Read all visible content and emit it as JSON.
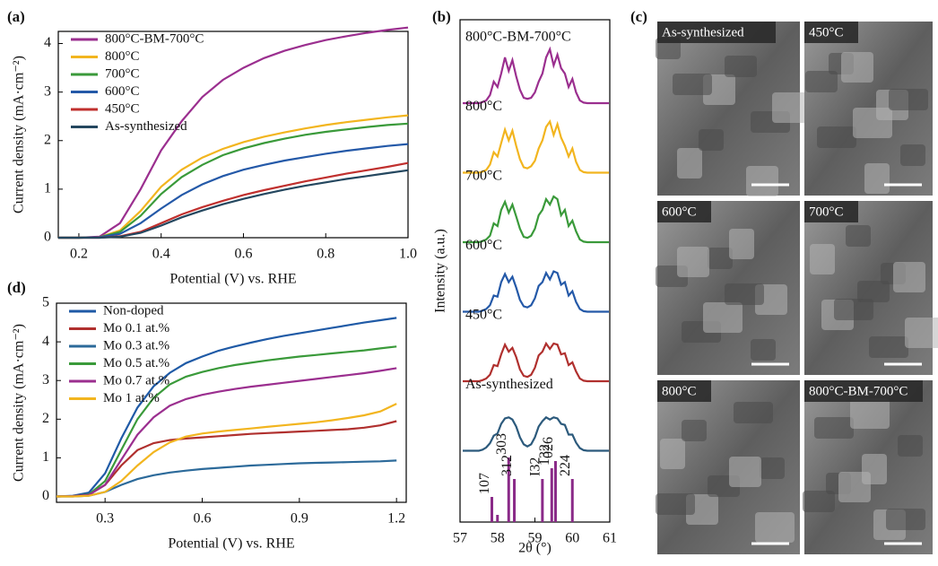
{
  "chart_data": [
    {
      "type": "line",
      "label": "(a)",
      "xlabel": "Potential (V) vs. RHE",
      "ylabel": "Current density (mA·cm⁻²)",
      "xlim": [
        0.15,
        1.0
      ],
      "ylim": [
        0,
        4.25
      ],
      "xticks": [
        0.2,
        0.4,
        0.6,
        0.8,
        {
          "value": 1,
          "label": "1.0"
        }
      ],
      "yticks": [
        0,
        1,
        2,
        3,
        4
      ],
      "legend": "upper left",
      "x": [
        0.15,
        0.2,
        0.25,
        0.3,
        0.35,
        0.4,
        0.45,
        0.5,
        0.55,
        0.6,
        0.65,
        0.7,
        0.75,
        0.8,
        0.85,
        0.9,
        0.95,
        1.0
      ],
      "series": [
        {
          "name": "800°C-BM-700°C",
          "color": "#9b2f8f",
          "values": [
            0,
            0,
            0.02,
            0.3,
            1.0,
            1.8,
            2.4,
            2.9,
            3.25,
            3.5,
            3.7,
            3.85,
            3.97,
            4.07,
            4.15,
            4.22,
            4.28,
            4.33
          ]
        },
        {
          "name": "800°C",
          "color": "#f2b51f",
          "values": [
            0,
            0,
            0.01,
            0.15,
            0.55,
            1.05,
            1.4,
            1.65,
            1.83,
            1.97,
            2.08,
            2.17,
            2.25,
            2.32,
            2.38,
            2.43,
            2.48,
            2.52
          ]
        },
        {
          "name": "700°C",
          "color": "#3a9a3a",
          "values": [
            0,
            0,
            0.01,
            0.12,
            0.45,
            0.9,
            1.25,
            1.5,
            1.7,
            1.84,
            1.95,
            2.04,
            2.12,
            2.18,
            2.23,
            2.28,
            2.32,
            2.35
          ]
        },
        {
          "name": "600°C",
          "color": "#2459a8",
          "values": [
            0,
            0,
            0.01,
            0.08,
            0.3,
            0.6,
            0.88,
            1.1,
            1.27,
            1.4,
            1.5,
            1.59,
            1.66,
            1.73,
            1.79,
            1.84,
            1.89,
            1.93
          ]
        },
        {
          "name": "450°C",
          "color": "#c0302e",
          "values": [
            0,
            0,
            0,
            0.03,
            0.12,
            0.3,
            0.48,
            0.63,
            0.76,
            0.88,
            0.98,
            1.07,
            1.16,
            1.24,
            1.32,
            1.39,
            1.46,
            1.54
          ]
        },
        {
          "name": "As-synthesized",
          "color": "#24475f",
          "values": [
            0,
            0,
            0,
            0.02,
            0.1,
            0.25,
            0.42,
            0.56,
            0.69,
            0.8,
            0.9,
            0.99,
            1.07,
            1.14,
            1.21,
            1.27,
            1.33,
            1.39
          ]
        }
      ]
    },
    {
      "type": "xrd",
      "label": "(b)",
      "xlabel": "2θ (°)",
      "ylabel": "Intensity (a.u.)",
      "xlim": [
        57,
        61
      ],
      "xticks": [
        57,
        58,
        59,
        60,
        61
      ],
      "x": [
        57.5,
        57.6,
        57.7,
        57.8,
        57.9,
        58.0,
        58.1,
        58.2,
        58.3,
        58.4,
        58.5,
        58.6,
        58.7,
        58.8,
        58.9,
        59.0,
        59.1,
        59.2,
        59.3,
        59.4,
        59.5,
        59.6,
        59.7,
        59.8,
        59.9,
        60.0,
        60.1,
        60.2,
        60.3,
        60.4,
        60.5,
        60.6,
        60.7
      ],
      "series": [
        {
          "name": "800°C-BM-700°C",
          "color": "#9b2f8f",
          "values": [
            0,
            0.02,
            0.05,
            0.15,
            0.4,
            0.3,
            0.55,
            0.85,
            0.6,
            0.8,
            0.5,
            0.25,
            0.1,
            0.08,
            0.1,
            0.2,
            0.4,
            0.55,
            0.85,
            1.0,
            0.7,
            0.9,
            0.65,
            0.55,
            0.3,
            0.45,
            0.2,
            0.05,
            0.01,
            0,
            0,
            0,
            0
          ]
        },
        {
          "name": "800°C",
          "color": "#f2b51f",
          "values": [
            0,
            0.02,
            0.05,
            0.15,
            0.38,
            0.3,
            0.55,
            0.8,
            0.6,
            0.78,
            0.5,
            0.25,
            0.1,
            0.08,
            0.12,
            0.22,
            0.45,
            0.6,
            0.85,
            0.95,
            0.7,
            0.9,
            0.65,
            0.5,
            0.3,
            0.45,
            0.2,
            0.05,
            0.01,
            0,
            0,
            0,
            0
          ]
        },
        {
          "name": "700°C",
          "color": "#3a9a3a",
          "values": [
            0,
            0.02,
            0.05,
            0.12,
            0.35,
            0.3,
            0.6,
            0.75,
            0.55,
            0.7,
            0.48,
            0.25,
            0.1,
            0.08,
            0.12,
            0.25,
            0.5,
            0.6,
            0.8,
            0.7,
            0.85,
            0.8,
            0.5,
            0.6,
            0.3,
            0.4,
            0.2,
            0.05,
            0.01,
            0,
            0,
            0,
            0
          ]
        },
        {
          "name": "600°C",
          "color": "#2459a8",
          "values": [
            0,
            0.02,
            0.05,
            0.12,
            0.3,
            0.28,
            0.55,
            0.7,
            0.55,
            0.65,
            0.45,
            0.22,
            0.1,
            0.08,
            0.12,
            0.25,
            0.48,
            0.55,
            0.72,
            0.6,
            0.75,
            0.72,
            0.5,
            0.55,
            0.3,
            0.38,
            0.18,
            0.05,
            0.01,
            0,
            0,
            0,
            0
          ]
        },
        {
          "name": "450°C",
          "color": "#b0302e",
          "values": [
            0,
            0.02,
            0.05,
            0.12,
            0.3,
            0.28,
            0.5,
            0.68,
            0.55,
            0.62,
            0.45,
            0.22,
            0.1,
            0.08,
            0.12,
            0.25,
            0.48,
            0.55,
            0.7,
            0.6,
            0.7,
            0.68,
            0.5,
            0.52,
            0.3,
            0.35,
            0.18,
            0.05,
            0.01,
            0,
            0,
            0,
            0
          ]
        },
        {
          "name": "As-synthesized",
          "color": "#2c5a7c",
          "values": [
            0,
            0.02,
            0.06,
            0.14,
            0.28,
            0.32,
            0.5,
            0.6,
            0.62,
            0.58,
            0.45,
            0.25,
            0.12,
            0.08,
            0.12,
            0.25,
            0.45,
            0.55,
            0.62,
            0.58,
            0.62,
            0.6,
            0.5,
            0.48,
            0.3,
            0.3,
            0.15,
            0.05,
            0.01,
            0,
            0,
            0,
            0
          ]
        }
      ],
      "sticks": {
        "color": "#8a2a88",
        "positions": [
          57.85,
          58.0,
          58.3,
          58.45,
          59.2,
          59.45,
          59.55,
          60.0
        ],
        "values": [
          0.35,
          0.1,
          0.9,
          0.6,
          0.6,
          0.75,
          0.85,
          0.6
        ],
        "labels": [
          "107",
          null,
          "303",
          "312",
          "I32",
          "132",
          "026",
          "224"
        ]
      }
    },
    {
      "type": "image-grid",
      "label": "(c)",
      "labels": [
        "As-synthesized",
        "450°C",
        "600°C",
        "700°C",
        "800°C",
        "800°C-BM-700°C"
      ]
    },
    {
      "type": "line",
      "label": "(d)",
      "xlabel": "Potential (V) vs. RHE",
      "ylabel": "Current density (mA·cm⁻²)",
      "xlim": [
        0.15,
        1.23
      ],
      "ylim": [
        -0.15,
        5
      ],
      "xticks": [
        0.3,
        0.6,
        0.9,
        1.2
      ],
      "yticks": [
        0,
        1,
        2,
        3,
        4,
        5
      ],
      "legend": "upper left",
      "x": [
        0.15,
        0.2,
        0.25,
        0.3,
        0.35,
        0.4,
        0.45,
        0.5,
        0.55,
        0.6,
        0.65,
        0.7,
        0.75,
        0.8,
        0.85,
        0.9,
        0.95,
        1.0,
        1.05,
        1.1,
        1.15,
        1.2
      ],
      "series": [
        {
          "name": "Non-doped",
          "color": "#1f5aa6",
          "values": [
            0,
            0.02,
            0.1,
            0.6,
            1.5,
            2.3,
            2.85,
            3.2,
            3.45,
            3.62,
            3.77,
            3.88,
            3.98,
            4.07,
            4.15,
            4.22,
            4.29,
            4.36,
            4.43,
            4.5,
            4.56,
            4.62
          ]
        },
        {
          "name": "Mo 0.1 at.%",
          "color": "#b0302e",
          "values": [
            0,
            0.01,
            0.05,
            0.3,
            0.8,
            1.2,
            1.38,
            1.46,
            1.5,
            1.53,
            1.56,
            1.59,
            1.62,
            1.64,
            1.66,
            1.68,
            1.7,
            1.72,
            1.74,
            1.78,
            1.84,
            1.95
          ]
        },
        {
          "name": "Mo 0.3 at.%",
          "color": "#2c6a9a",
          "values": [
            0,
            0,
            0.02,
            0.12,
            0.3,
            0.45,
            0.55,
            0.62,
            0.67,
            0.71,
            0.74,
            0.77,
            0.8,
            0.82,
            0.84,
            0.86,
            0.87,
            0.88,
            0.89,
            0.9,
            0.91,
            0.93
          ]
        },
        {
          "name": "Mo 0.5 at.%",
          "color": "#3a9a3a",
          "values": [
            0,
            0.01,
            0.05,
            0.4,
            1.2,
            2.0,
            2.55,
            2.9,
            3.1,
            3.22,
            3.32,
            3.4,
            3.46,
            3.52,
            3.57,
            3.62,
            3.66,
            3.7,
            3.74,
            3.78,
            3.83,
            3.88
          ]
        },
        {
          "name": "Mo 0.7 at.%",
          "color": "#9b2f8f",
          "values": [
            0,
            0.01,
            0.04,
            0.3,
            0.95,
            1.6,
            2.05,
            2.35,
            2.52,
            2.63,
            2.71,
            2.78,
            2.84,
            2.89,
            2.94,
            2.99,
            3.04,
            3.09,
            3.14,
            3.19,
            3.25,
            3.32
          ]
        },
        {
          "name": "Mo 1 at.%",
          "color": "#f2b51f",
          "values": [
            0,
            0,
            0.02,
            0.12,
            0.4,
            0.8,
            1.15,
            1.4,
            1.55,
            1.63,
            1.68,
            1.72,
            1.76,
            1.8,
            1.84,
            1.88,
            1.92,
            1.97,
            2.03,
            2.1,
            2.2,
            2.4
          ]
        }
      ]
    }
  ]
}
